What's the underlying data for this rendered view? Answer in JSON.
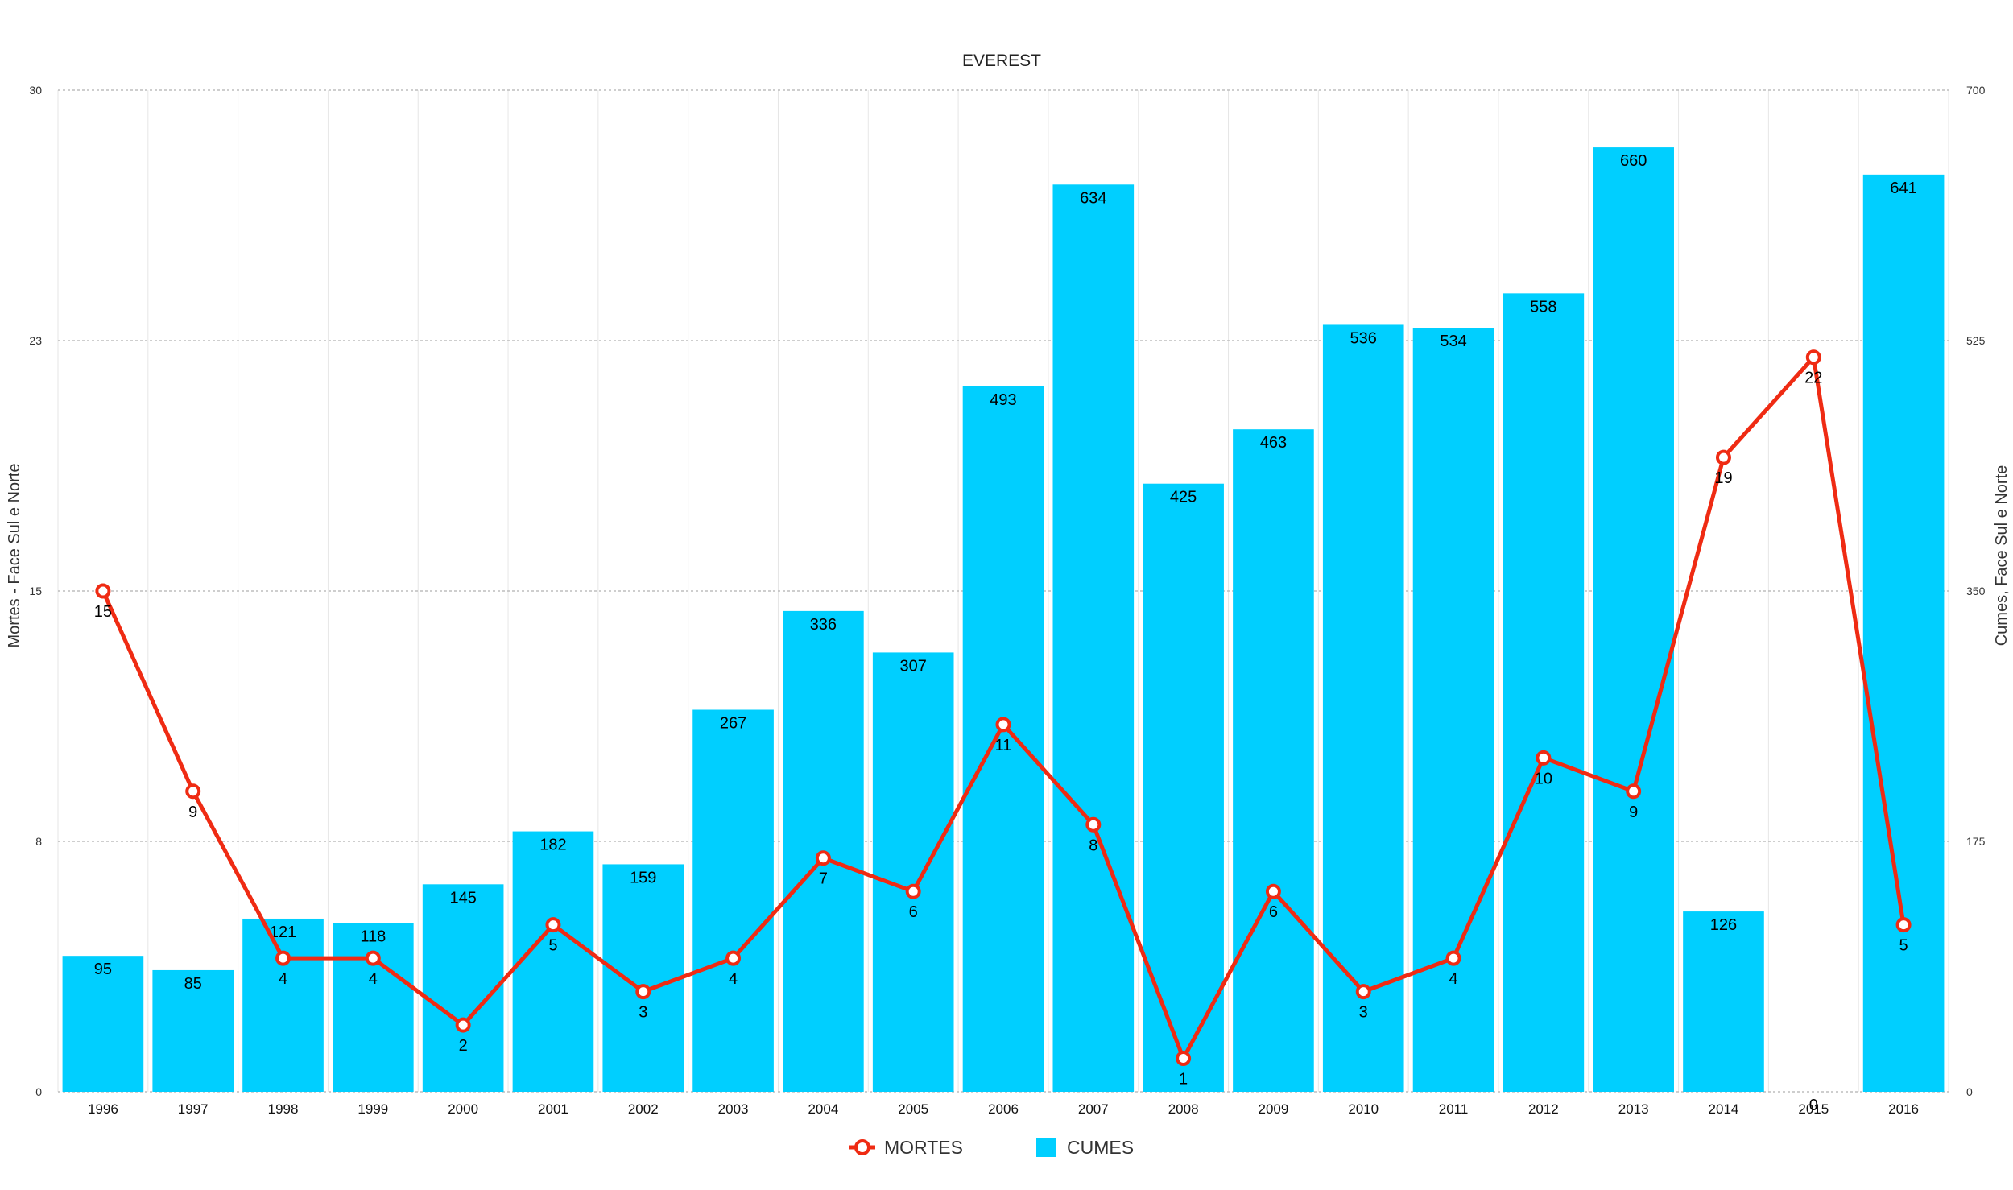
{
  "chart_data": {
    "type": "bar",
    "title": "EVEREST",
    "categories": [
      "1996",
      "1997",
      "1998",
      "1999",
      "2000",
      "2001",
      "2002",
      "2003",
      "2004",
      "2005",
      "2006",
      "2007",
      "2008",
      "2009",
      "2010",
      "2011",
      "2012",
      "2013",
      "2014",
      "2015",
      "2016"
    ],
    "series": [
      {
        "name": "MORTES",
        "type": "line",
        "axis": "left",
        "color": "#ef2b13",
        "values": [
          15,
          9,
          4,
          4,
          2,
          5,
          3,
          4,
          7,
          6,
          11,
          8,
          1,
          6,
          3,
          4,
          10,
          9,
          19,
          22,
          5
        ]
      },
      {
        "name": "CUMES",
        "type": "bar",
        "axis": "right",
        "color": "#00cfff",
        "values": [
          95,
          85,
          121,
          118,
          145,
          182,
          159,
          267,
          336,
          307,
          493,
          634,
          425,
          463,
          536,
          534,
          558,
          660,
          126,
          0,
          641
        ]
      }
    ],
    "left_axis": {
      "label": "Mortes - Face Sul e Norte",
      "ticks": [
        "0",
        "8",
        "15",
        "23",
        "30"
      ],
      "range": [
        0,
        30
      ]
    },
    "right_axis": {
      "label": "Cumes, Face Sul e Norte",
      "ticks": [
        "0",
        "175",
        "350",
        "525",
        "700"
      ],
      "range": [
        0,
        700
      ]
    },
    "grid": true,
    "legend": {
      "position": "bottom",
      "items": [
        "MORTES",
        "CUMES"
      ]
    }
  }
}
